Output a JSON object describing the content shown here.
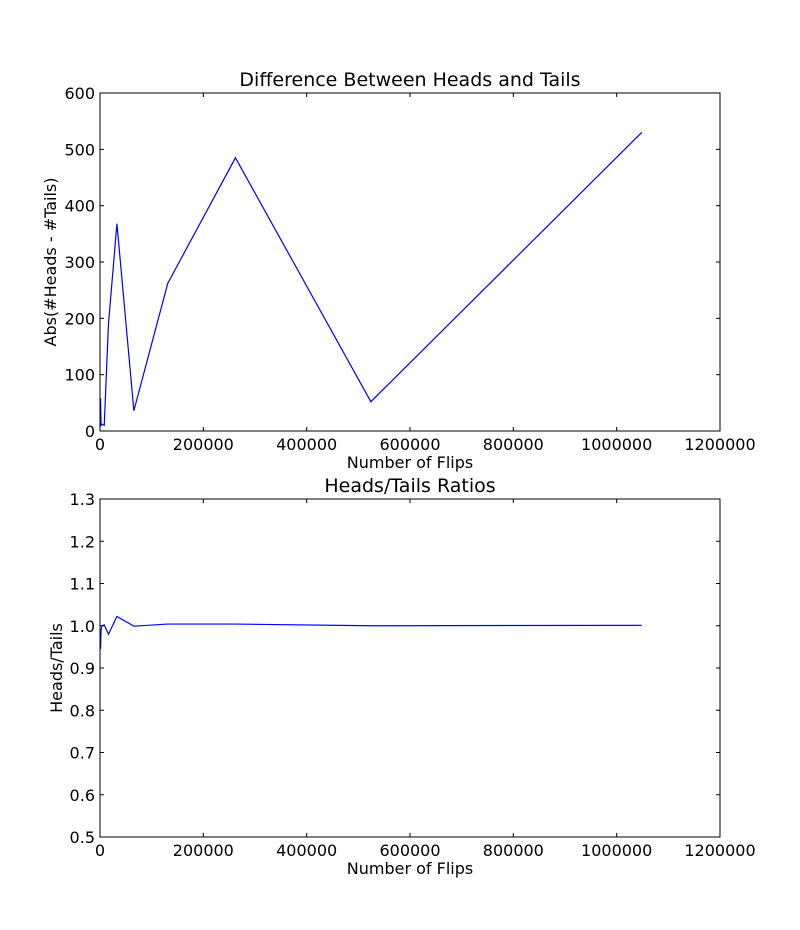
{
  "chart_data": [
    {
      "type": "line",
      "title": "Difference Between Heads and Tails",
      "xlabel": "Number of Flips",
      "ylabel": "Abs(#Heads - #Tails)",
      "xlim": [
        0,
        1200000
      ],
      "ylim": [
        0,
        600
      ],
      "xticks": [
        0,
        200000,
        400000,
        600000,
        800000,
        1000000,
        1200000
      ],
      "yticks": [
        0,
        100,
        200,
        300,
        400,
        500,
        600
      ],
      "xtick_labels": [
        "0",
        "200000",
        "400000",
        "600000",
        "800000",
        "1000000",
        "1200000"
      ],
      "ytick_labels": [
        "0",
        "100",
        "200",
        "300",
        "400",
        "500",
        "600"
      ],
      "grid": false,
      "color": "#0000ff",
      "series": [
        {
          "x": [
            1024,
            2048,
            4096,
            8192,
            16384,
            32768,
            65536,
            131072,
            262144,
            524288,
            1048576
          ],
          "y": [
            58,
            10,
            12,
            10,
            190,
            368,
            36,
            262,
            485,
            52,
            530
          ]
        }
      ]
    },
    {
      "type": "line",
      "title": "Heads/Tails Ratios",
      "xlabel": "Number of Flips",
      "ylabel": "Heads/Tails",
      "xlim": [
        0,
        1200000
      ],
      "ylim": [
        0.5,
        1.3
      ],
      "xticks": [
        0,
        200000,
        400000,
        600000,
        800000,
        1000000,
        1200000
      ],
      "yticks": [
        0.5,
        0.6,
        0.7,
        0.8,
        0.9,
        1.0,
        1.1,
        1.2,
        1.3
      ],
      "xtick_labels": [
        "0",
        "200000",
        "400000",
        "600000",
        "800000",
        "1000000",
        "1200000"
      ],
      "ytick_labels": [
        "0.5",
        "0.6",
        "0.7",
        "0.8",
        "0.9",
        "1.0",
        "1.1",
        "1.2",
        "1.3"
      ],
      "grid": false,
      "color": "#0000ff",
      "series": [
        {
          "x": [
            1024,
            2048,
            4096,
            8192,
            16384,
            32768,
            65536,
            131072,
            262144,
            524288,
            1048576
          ],
          "y": [
            0.945,
            0.99,
            1.0,
            1.002,
            0.98,
            1.022,
            0.999,
            1.004,
            1.004,
            1.0,
            1.001
          ]
        }
      ]
    }
  ]
}
